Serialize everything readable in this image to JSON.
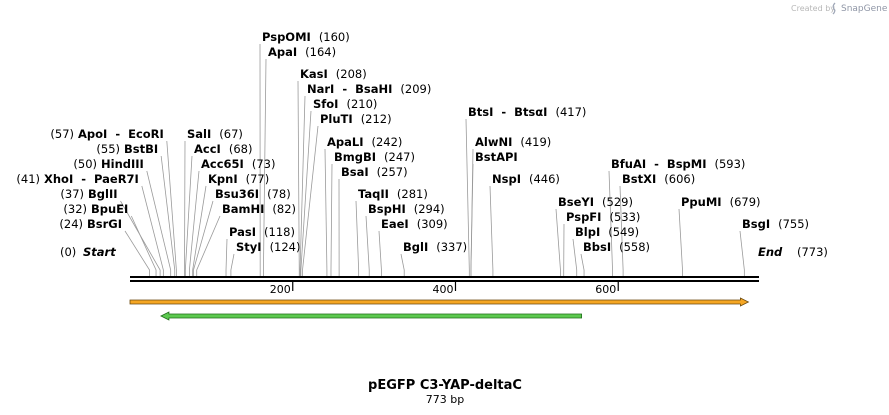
{
  "credit": {
    "text": "Created by",
    "brand": "SnapGene",
    "logo_icon": "snapgene-logo-icon"
  },
  "map": {
    "title": "pEGFP C3-YAP-deltaC",
    "length_label": "773 bp",
    "length": 773,
    "start_label": "Start",
    "end_label": "End",
    "start_pos": "(0)",
    "end_pos": "(773)",
    "ticks": [
      {
        "value": 200,
        "label": "200"
      },
      {
        "value": 400,
        "label": "400"
      },
      {
        "value": 600,
        "label": "600"
      }
    ],
    "sites": [
      {
        "name": "PspOMI",
        "pos": "(160)",
        "bp": 160
      },
      {
        "name": "ApaI",
        "pos": "(164)",
        "bp": 164
      },
      {
        "name": "KasI",
        "pos": "(208)",
        "bp": 208
      },
      {
        "name": "NarI  -  BsaHI",
        "pos": "(209)",
        "bp": 209
      },
      {
        "name": "SfoI",
        "pos": "(210)",
        "bp": 210
      },
      {
        "name": "PluTI",
        "pos": "(212)",
        "bp": 212
      },
      {
        "name": "ApoI  -  EcoRI",
        "pos": "(57)",
        "bp": 57
      },
      {
        "name": "SalI",
        "pos": "(67)",
        "bp": 67
      },
      {
        "name": "BstBI",
        "pos": "(55)",
        "bp": 55
      },
      {
        "name": "AccI",
        "pos": "(68)",
        "bp": 68
      },
      {
        "name": "HindIII",
        "pos": "(50)",
        "bp": 50
      },
      {
        "name": "Acc65I",
        "pos": "(73)",
        "bp": 73
      },
      {
        "name": "XhoI  -  PaeR7I",
        "pos": "(41)",
        "bp": 41
      },
      {
        "name": "KpnI",
        "pos": "(77)",
        "bp": 77
      },
      {
        "name": "BglII",
        "pos": "(37)",
        "bp": 37
      },
      {
        "name": "Bsu36I",
        "pos": "(78)",
        "bp": 78
      },
      {
        "name": "BpuEI",
        "pos": "(32)",
        "bp": 32
      },
      {
        "name": "BamHI",
        "pos": "(82)",
        "bp": 82
      },
      {
        "name": "BsrGI",
        "pos": "(24)",
        "bp": 24
      },
      {
        "name": "PasI",
        "pos": "(118)",
        "bp": 118
      },
      {
        "name": "StyI",
        "pos": "(124)",
        "bp": 124
      },
      {
        "name": "ApaLI",
        "pos": "(242)",
        "bp": 242
      },
      {
        "name": "BmgBI",
        "pos": "(247)",
        "bp": 247
      },
      {
        "name": "BsaI",
        "pos": "(257)",
        "bp": 257
      },
      {
        "name": "TaqII",
        "pos": "(281)",
        "bp": 281
      },
      {
        "name": "BspHI",
        "pos": "(294)",
        "bp": 294
      },
      {
        "name": "EaeI",
        "pos": "(309)",
        "bp": 309
      },
      {
        "name": "BglI",
        "pos": "(337)",
        "bp": 337
      },
      {
        "name": "BtsI  -  BtsαI",
        "pos": "(417)",
        "bp": 417
      },
      {
        "name": "AlwNI",
        "pos": "(419)",
        "bp": 419
      },
      {
        "name": "BstAPI",
        "pos": "",
        "bp": 419
      },
      {
        "name": "NspI",
        "pos": "(446)",
        "bp": 446
      },
      {
        "name": "BfuAI  -  BspMI",
        "pos": "(593)",
        "bp": 593
      },
      {
        "name": "BstXI",
        "pos": "(606)",
        "bp": 606
      },
      {
        "name": "BseYI",
        "pos": "(529)",
        "bp": 529
      },
      {
        "name": "PspFI",
        "pos": "(533)",
        "bp": 533
      },
      {
        "name": "BlpI",
        "pos": "(549)",
        "bp": 549
      },
      {
        "name": "BbsI",
        "pos": "(558)",
        "bp": 558
      },
      {
        "name": "PpuMI",
        "pos": "(679)",
        "bp": 679
      },
      {
        "name": "BsgI",
        "pos": "(755)",
        "bp": 755
      }
    ],
    "features": [
      {
        "name": "orange-feature-arrow",
        "start": 0,
        "end": 760,
        "direction": "forward",
        "fill": "#f5a623",
        "stroke": "#6b4a10"
      },
      {
        "name": "green-feature-arrow",
        "start": 38,
        "end": 555,
        "direction": "reverse",
        "fill": "#5cc94f",
        "stroke": "#1f6b1a"
      }
    ]
  }
}
